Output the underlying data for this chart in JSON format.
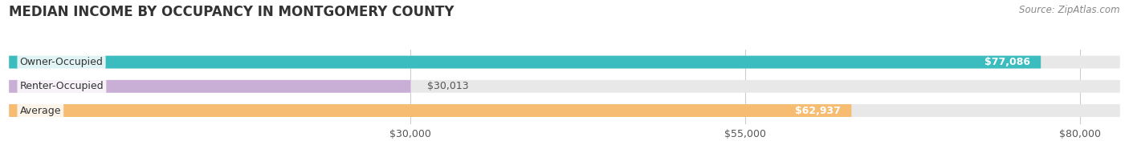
{
  "title": "MEDIAN INCOME BY OCCUPANCY IN MONTGOMERY COUNTY",
  "source": "Source: ZipAtlas.com",
  "categories": [
    "Owner-Occupied",
    "Renter-Occupied",
    "Average"
  ],
  "values": [
    77086,
    30013,
    62937
  ],
  "bar_colors": [
    "#3bbcbe",
    "#c9aed6",
    "#f5bc72"
  ],
  "bar_bg_color": "#e8e8e8",
  "value_labels": [
    "$77,086",
    "$30,013",
    "$62,937"
  ],
  "xmin": 0,
  "xmax": 83000,
  "xticks": [
    30000,
    55000,
    80000
  ],
  "xtick_labels": [
    "$30,000",
    "$55,000",
    "$80,000"
  ],
  "background_color": "#ffffff",
  "bar_height": 0.52,
  "title_fontsize": 12,
  "label_fontsize": 9,
  "tick_fontsize": 9,
  "source_fontsize": 8.5
}
